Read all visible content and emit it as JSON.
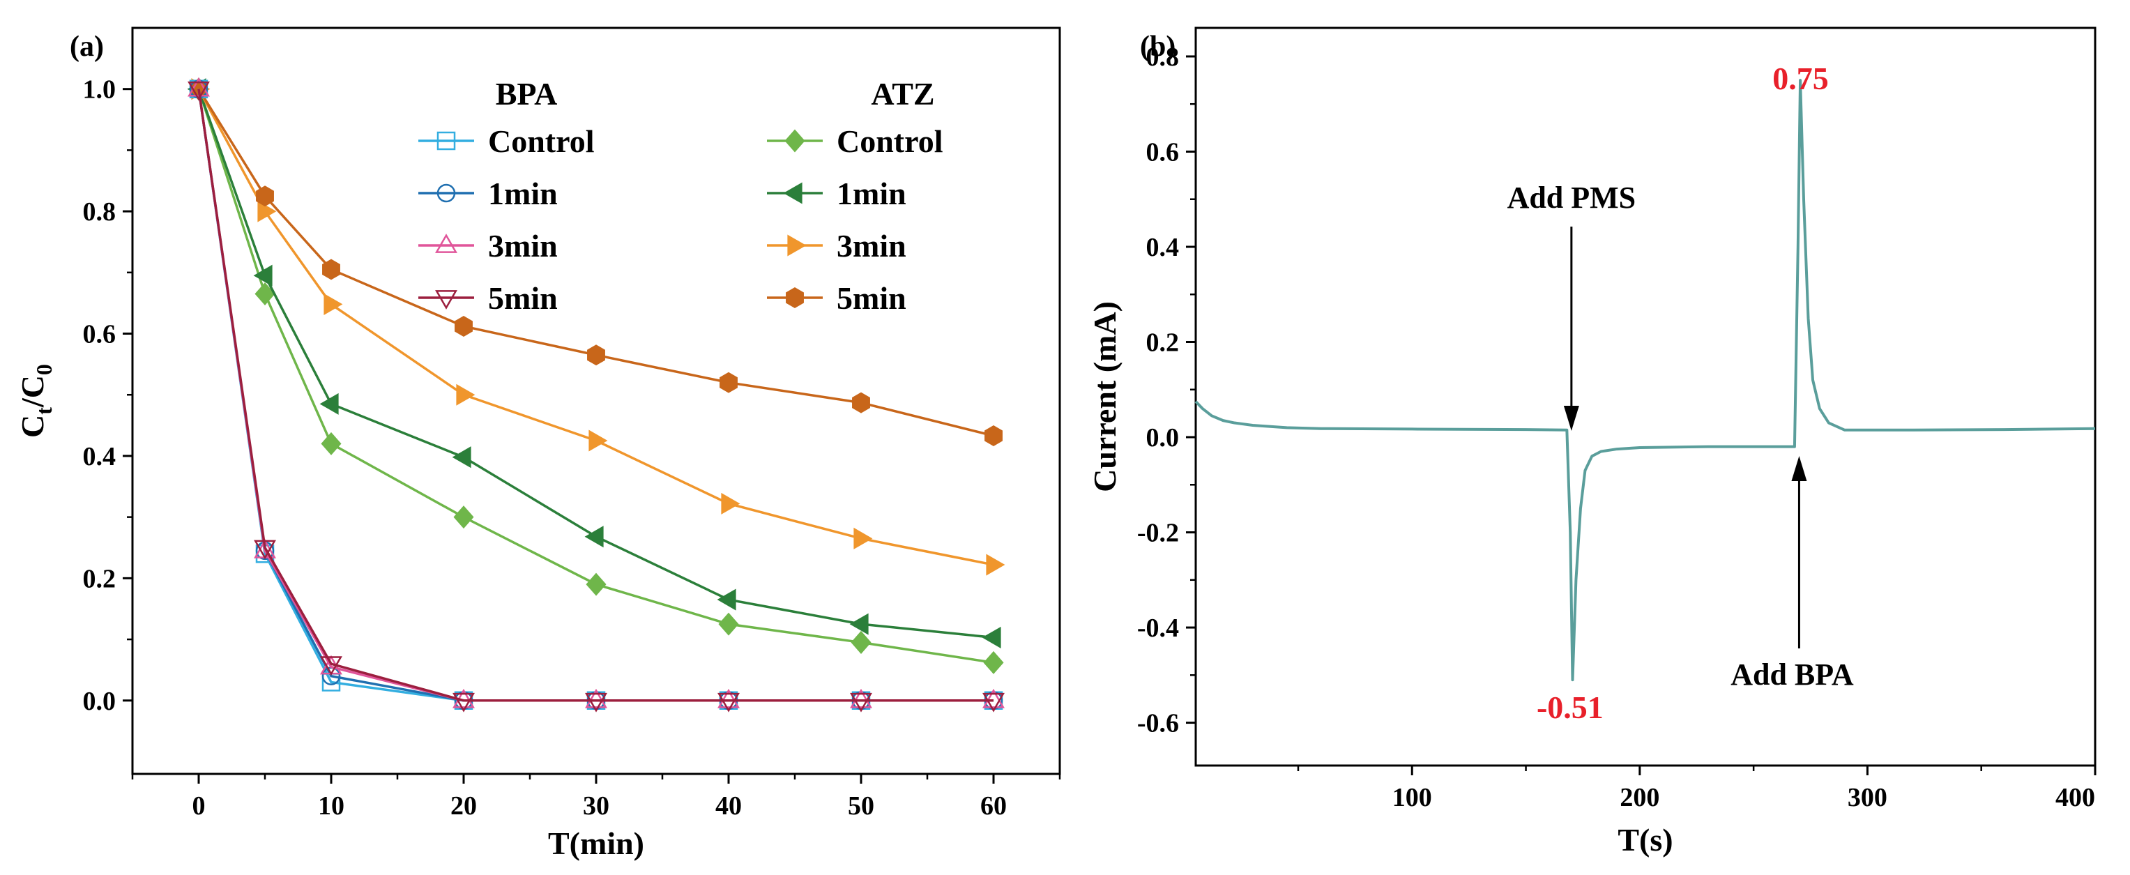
{
  "chart_data": [
    {
      "panel": "(a)",
      "type": "line",
      "xlabel": "T(min)",
      "ylabel_main": "C",
      "ylabel_sub_t": "t",
      "ylabel_slash": "/C",
      "ylabel_sub_0": "0",
      "xlim": [
        -5,
        65
      ],
      "ylim": [
        -0.12,
        1.1
      ],
      "xticks": [
        0,
        10,
        20,
        30,
        40,
        50,
        60
      ],
      "yticks": [
        0.0,
        0.2,
        0.4,
        0.6,
        0.8,
        1.0
      ],
      "ytick_labels": [
        "0.0",
        "0.2",
        "0.4",
        "0.6",
        "0.8",
        "1.0"
      ],
      "legend_group_titles": [
        "BPA",
        "ATZ"
      ],
      "x": [
        0,
        5,
        10,
        20,
        30,
        40,
        50,
        60
      ],
      "series": [
        {
          "name": "Control",
          "group": "BPA",
          "color": "#33aee0",
          "marker": "square-open",
          "values": [
            1.0,
            0.24,
            0.03,
            0.0,
            0.0,
            0.0,
            0.0,
            0.0
          ]
        },
        {
          "name": "1min",
          "group": "BPA",
          "color": "#1f6fb0",
          "marker": "circle-open",
          "values": [
            1.0,
            0.245,
            0.04,
            0.0,
            0.0,
            0.0,
            0.0,
            0.0
          ]
        },
        {
          "name": "3min",
          "group": "BPA",
          "color": "#e0559a",
          "marker": "triangle-up-open",
          "values": [
            1.0,
            0.245,
            0.055,
            0.0,
            0.0,
            0.0,
            0.0,
            0.0
          ]
        },
        {
          "name": "5min",
          "group": "BPA",
          "color": "#9c1f3e",
          "marker": "triangle-down-open",
          "values": [
            1.0,
            0.25,
            0.06,
            0.0,
            0.0,
            0.0,
            0.0,
            0.0
          ]
        },
        {
          "name": "Control",
          "group": "ATZ",
          "color": "#6fb64a",
          "marker": "diamond-filled",
          "values": [
            1.0,
            0.665,
            0.42,
            0.3,
            0.19,
            0.125,
            0.095,
            0.062
          ]
        },
        {
          "name": "1min",
          "group": "ATZ",
          "color": "#2b7f3a",
          "marker": "triangle-left-filled",
          "values": [
            1.0,
            0.695,
            0.485,
            0.398,
            0.268,
            0.165,
            0.125,
            0.103
          ]
        },
        {
          "name": "3min",
          "group": "ATZ",
          "color": "#f0962c",
          "marker": "triangle-right-filled",
          "values": [
            1.0,
            0.8,
            0.648,
            0.5,
            0.425,
            0.322,
            0.265,
            0.222
          ]
        },
        {
          "name": "5min",
          "group": "ATZ",
          "color": "#c8661a",
          "marker": "hexagon-filled",
          "values": [
            1.0,
            0.825,
            0.705,
            0.612,
            0.565,
            0.52,
            0.487,
            0.433
          ]
        }
      ]
    },
    {
      "panel": "(b)",
      "type": "line",
      "xlabel": "T(s)",
      "ylabel": "Current (mA)",
      "xlim": [
        5,
        400
      ],
      "ylim": [
        -0.69,
        0.86
      ],
      "xticks": [
        100,
        200,
        300,
        400
      ],
      "yticks": [
        -0.6,
        -0.4,
        -0.2,
        0.0,
        0.2,
        0.4,
        0.6,
        0.8
      ],
      "ytick_labels": [
        "-0.6",
        "-0.4",
        "-0.2",
        "0.0",
        "0.2",
        "0.4",
        "0.6",
        "0.8"
      ],
      "series": [
        {
          "name": "Current",
          "color": "#5a9e9b",
          "x": [
            5,
            8,
            12,
            17,
            22,
            30,
            45,
            60,
            100,
            150,
            168,
            169.5,
            170.5,
            172,
            174,
            176,
            179,
            183,
            190,
            200,
            230,
            268,
            269.5,
            270.5,
            272,
            274,
            276,
            279,
            283,
            290,
            320,
            360,
            400
          ],
          "y": [
            0.075,
            0.06,
            0.045,
            0.035,
            0.03,
            0.025,
            0.02,
            0.018,
            0.017,
            0.016,
            0.015,
            -0.2,
            -0.51,
            -0.3,
            -0.15,
            -0.07,
            -0.04,
            -0.03,
            -0.025,
            -0.022,
            -0.02,
            -0.02,
            0.4,
            0.75,
            0.5,
            0.25,
            0.12,
            0.06,
            0.03,
            0.015,
            0.015,
            0.016,
            0.018
          ]
        }
      ],
      "annotations": {
        "add_pms_label": "Add PMS",
        "add_pms_time": 170,
        "add_bpa_label": "Add BPA",
        "add_bpa_time": 270,
        "min_value_label": "-0.51",
        "min_value": -0.51,
        "max_value_label": "0.75",
        "max_value": 0.75,
        "value_color": "#e8202a"
      }
    }
  ]
}
